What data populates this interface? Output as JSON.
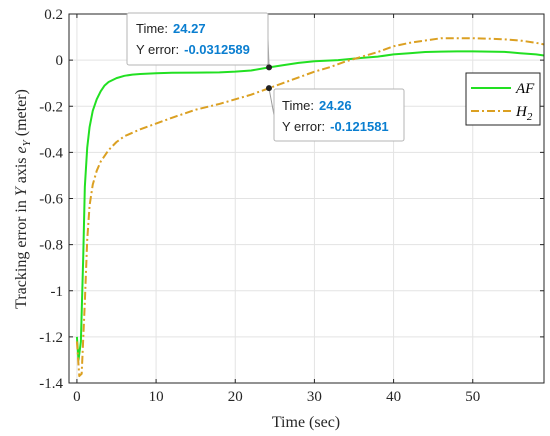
{
  "chart_data": {
    "type": "line",
    "xlabel": "Time (sec)",
    "ylabel": {
      "prefix": "Tracking error in ",
      "axis_var": "Y",
      "middle": " axis ",
      "err_var": "e",
      "err_sub": "Y",
      "suffix": " (meter)"
    },
    "xlim": [
      -1,
      59
    ],
    "ylim": [
      -1.4,
      0.2
    ],
    "xticks": [
      0,
      10,
      20,
      30,
      40,
      50
    ],
    "xtick_labels": [
      "0",
      "10",
      "20",
      "30",
      "40",
      "50"
    ],
    "yticks": [
      0.2,
      0,
      -0.2,
      -0.4,
      -0.6,
      -0.8,
      -1,
      -1.2,
      -1.4
    ],
    "ytick_labels": [
      "0.2",
      "0",
      "-0.2",
      "-0.4",
      "-0.6",
      "-0.8",
      "-1",
      "-1.2",
      "-1.4"
    ],
    "grid": true,
    "legend_position": "top-right",
    "series": [
      {
        "name": "AF",
        "color": "#22e022",
        "style": "solid",
        "x": [
          0,
          0.2,
          0.5,
          0.8,
          1,
          1.3,
          1.6,
          2,
          2.5,
          3,
          3.5,
          4,
          5,
          6,
          7,
          8,
          10,
          12,
          15,
          18,
          20,
          22,
          24.27,
          26,
          28,
          30,
          33,
          36,
          38,
          40,
          42,
          44,
          46,
          48,
          50,
          52,
          54,
          56,
          58,
          59
        ],
        "y": [
          -1.2,
          -1.3,
          -1.22,
          -0.85,
          -0.55,
          -0.38,
          -0.29,
          -0.22,
          -0.17,
          -0.135,
          -0.11,
          -0.095,
          -0.078,
          -0.068,
          -0.063,
          -0.06,
          -0.057,
          -0.055,
          -0.054,
          -0.053,
          -0.05,
          -0.045,
          -0.0312589,
          -0.022,
          -0.012,
          -0.005,
          0.0,
          0.01,
          0.015,
          0.025,
          0.03,
          0.035,
          0.037,
          0.038,
          0.038,
          0.037,
          0.036,
          0.03,
          0.025,
          0.02
        ]
      },
      {
        "name": "H",
        "sub": "2",
        "color": "#dba022",
        "style": "dashdot",
        "x": [
          0,
          0.3,
          0.6,
          1,
          1.3,
          1.6,
          2,
          2.5,
          3,
          4,
          5,
          6,
          8,
          10,
          12,
          15,
          18,
          20,
          22,
          24.26,
          26,
          28,
          30,
          32,
          34,
          36,
          38,
          40,
          42,
          44,
          46,
          48,
          50,
          52,
          54,
          56,
          58,
          59
        ],
        "y": [
          -1.22,
          -1.37,
          -1.36,
          -1.05,
          -0.78,
          -0.63,
          -0.54,
          -0.48,
          -0.44,
          -0.39,
          -0.355,
          -0.33,
          -0.3,
          -0.275,
          -0.25,
          -0.215,
          -0.19,
          -0.17,
          -0.15,
          -0.121581,
          -0.1,
          -0.075,
          -0.05,
          -0.03,
          -0.005,
          0.015,
          0.035,
          0.06,
          0.075,
          0.085,
          0.095,
          0.095,
          0.095,
          0.093,
          0.09,
          0.085,
          0.075,
          0.068
        ]
      }
    ],
    "datatips": [
      {
        "series": 0,
        "x": 24.27,
        "y": -0.0312589,
        "time_label": "Time:",
        "time_value": "24.27",
        "err_label": "Y error:",
        "err_value": "-0.0312589"
      },
      {
        "series": 1,
        "x": 24.26,
        "y": -0.121581,
        "time_label": "Time:",
        "time_value": "24.26",
        "err_label": "Y error:",
        "err_value": "-0.121581"
      }
    ]
  }
}
